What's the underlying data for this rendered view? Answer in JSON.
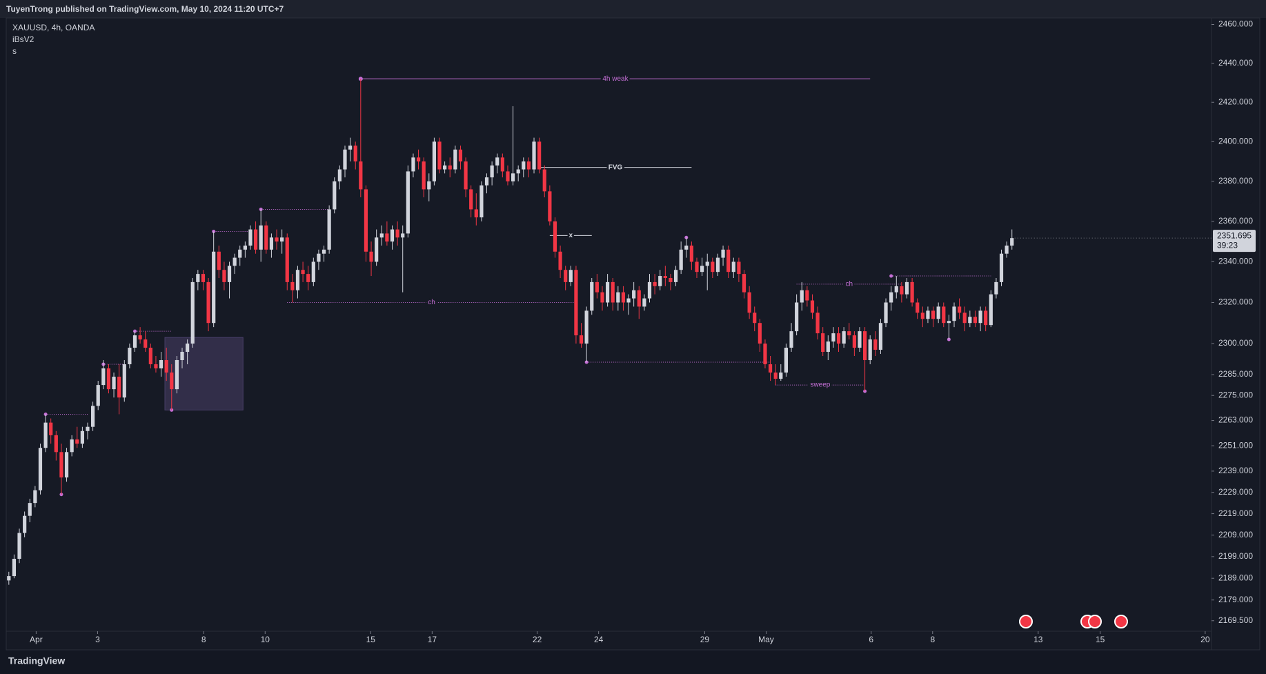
{
  "header": {
    "publisher": "TuyenTrong published on TradingView.com, May 10, 2024 11:20 UTC+7",
    "brand": "TradingView"
  },
  "chart_data": {
    "type": "candlestick",
    "symbol": "XAUUSD, 4h, OANDA",
    "indicators": [
      "iBsV2",
      "s"
    ],
    "log_scale": true,
    "up_color": "#d1d4dc",
    "down_color": "#f23645",
    "annotation_color": "#c56fd6",
    "ylim": [
      2164.7,
      2463.4
    ],
    "yticks": [
      {
        "value": 2460,
        "label": "2460.000"
      },
      {
        "value": 2440,
        "label": "2440.000"
      },
      {
        "value": 2420,
        "label": "2420.000"
      },
      {
        "value": 2400,
        "label": "2400.000"
      },
      {
        "value": 2380,
        "label": "2380.000"
      },
      {
        "value": 2360,
        "label": "2360.000"
      },
      {
        "value": 2340,
        "label": "2340.000"
      },
      {
        "value": 2320,
        "label": "2320.000"
      },
      {
        "value": 2300,
        "label": "2300.000"
      },
      {
        "value": 2285,
        "label": "2285.000"
      },
      {
        "value": 2275,
        "label": "2275.000"
      },
      {
        "value": 2263,
        "label": "2263.000"
      },
      {
        "value": 2251,
        "label": "2251.000"
      },
      {
        "value": 2239,
        "label": "2239.000"
      },
      {
        "value": 2229,
        "label": "2229.000"
      },
      {
        "value": 2219,
        "label": "2219.000"
      },
      {
        "value": 2209,
        "label": "2209.000"
      },
      {
        "value": 2199,
        "label": "2199.000"
      },
      {
        "value": 2189,
        "label": "2189.000"
      },
      {
        "value": 2179,
        "label": "2179.000"
      },
      {
        "value": 2169.5,
        "label": "2169.500"
      }
    ],
    "xlim": [
      -0.5,
      229
    ],
    "xticks": [
      {
        "value": 5.2,
        "label": "Apr"
      },
      {
        "value": 16.9,
        "label": "3"
      },
      {
        "value": 37.1,
        "label": "8"
      },
      {
        "value": 48.8,
        "label": "10"
      },
      {
        "value": 68.9,
        "label": "15"
      },
      {
        "value": 80.6,
        "label": "17"
      },
      {
        "value": 100.6,
        "label": "22"
      },
      {
        "value": 112.3,
        "label": "24"
      },
      {
        "value": 132.5,
        "label": "29"
      },
      {
        "value": 144.2,
        "label": "May"
      },
      {
        "value": 164.2,
        "label": "6"
      },
      {
        "value": 175.9,
        "label": "8"
      },
      {
        "value": 196,
        "label": "13"
      },
      {
        "value": 207.8,
        "label": "15"
      },
      {
        "value": 227.8,
        "label": "20"
      }
    ],
    "countdown": "39:23",
    "ohlc": [
      [
        2188,
        2192,
        2186,
        2190
      ],
      [
        2190,
        2200,
        2189,
        2198
      ],
      [
        2198,
        2212,
        2196,
        2210
      ],
      [
        2210,
        2220,
        2208,
        2218
      ],
      [
        2218,
        2226,
        2215,
        2224
      ],
      [
        2224,
        2232,
        2222,
        2230
      ],
      [
        2230,
        2252,
        2228,
        2250
      ],
      [
        2250,
        2266,
        2248,
        2262
      ],
      [
        2262,
        2264,
        2252,
        2256
      ],
      [
        2256,
        2258,
        2244,
        2248
      ],
      [
        2248,
        2252,
        2228,
        2236
      ],
      [
        2236,
        2250,
        2234,
        2248
      ],
      [
        2248,
        2256,
        2246,
        2254
      ],
      [
        2254,
        2260,
        2250,
        2252
      ],
      [
        2252,
        2260,
        2250,
        2258
      ],
      [
        2258,
        2262,
        2254,
        2260
      ],
      [
        2260,
        2272,
        2258,
        2270
      ],
      [
        2270,
        2282,
        2268,
        2280
      ],
      [
        2280,
        2292,
        2278,
        2288
      ],
      [
        2288,
        2290,
        2276,
        2278
      ],
      [
        2278,
        2286,
        2274,
        2284
      ],
      [
        2284,
        2290,
        2266,
        2274
      ],
      [
        2274,
        2292,
        2272,
        2290
      ],
      [
        2290,
        2300,
        2288,
        2298
      ],
      [
        2298,
        2306,
        2296,
        2304
      ],
      [
        2304,
        2308,
        2300,
        2302
      ],
      [
        2302,
        2306,
        2296,
        2298
      ],
      [
        2298,
        2300,
        2288,
        2290
      ],
      [
        2290,
        2294,
        2286,
        2288
      ],
      [
        2288,
        2296,
        2284,
        2292
      ],
      [
        2292,
        2298,
        2282,
        2286
      ],
      [
        2286,
        2290,
        2268,
        2278
      ],
      [
        2278,
        2294,
        2276,
        2292
      ],
      [
        2292,
        2298,
        2288,
        2296
      ],
      [
        2296,
        2302,
        2290,
        2300
      ],
      [
        2300,
        2332,
        2298,
        2330
      ],
      [
        2330,
        2336,
        2326,
        2334
      ],
      [
        2334,
        2336,
        2326,
        2330
      ],
      [
        2330,
        2332,
        2306,
        2310
      ],
      [
        2310,
        2355,
        2308,
        2345
      ],
      [
        2345,
        2348,
        2332,
        2336
      ],
      [
        2336,
        2340,
        2326,
        2330
      ],
      [
        2330,
        2340,
        2322,
        2338
      ],
      [
        2338,
        2344,
        2334,
        2342
      ],
      [
        2342,
        2348,
        2338,
        2346
      ],
      [
        2346,
        2350,
        2342,
        2348
      ],
      [
        2348,
        2358,
        2346,
        2356
      ],
      [
        2356,
        2360,
        2344,
        2346
      ],
      [
        2346,
        2366,
        2340,
        2358
      ],
      [
        2358,
        2360,
        2344,
        2346
      ],
      [
        2346,
        2354,
        2342,
        2352
      ],
      [
        2352,
        2356,
        2346,
        2350
      ],
      [
        2350,
        2356,
        2344,
        2352
      ],
      [
        2352,
        2354,
        2326,
        2330
      ],
      [
        2330,
        2334,
        2320,
        2326
      ],
      [
        2326,
        2338,
        2322,
        2336
      ],
      [
        2336,
        2340,
        2330,
        2334
      ],
      [
        2334,
        2338,
        2326,
        2330
      ],
      [
        2330,
        2342,
        2328,
        2340
      ],
      [
        2340,
        2346,
        2336,
        2344
      ],
      [
        2344,
        2348,
        2340,
        2346
      ],
      [
        2346,
        2368,
        2344,
        2366
      ],
      [
        2366,
        2382,
        2364,
        2380
      ],
      [
        2380,
        2388,
        2376,
        2386
      ],
      [
        2386,
        2398,
        2382,
        2396
      ],
      [
        2396,
        2402,
        2390,
        2398
      ],
      [
        2398,
        2400,
        2386,
        2390
      ],
      [
        2390,
        2432,
        2372,
        2376
      ],
      [
        2376,
        2378,
        2340,
        2345
      ],
      [
        2345,
        2350,
        2333,
        2340
      ],
      [
        2340,
        2356,
        2338,
        2352
      ],
      [
        2352,
        2358,
        2348,
        2354
      ],
      [
        2354,
        2360,
        2348,
        2350
      ],
      [
        2350,
        2358,
        2346,
        2356
      ],
      [
        2356,
        2360,
        2348,
        2352
      ],
      [
        2352,
        2358,
        2325,
        2354
      ],
      [
        2354,
        2388,
        2352,
        2385
      ],
      [
        2385,
        2394,
        2382,
        2392
      ],
      [
        2392,
        2396,
        2386,
        2390
      ],
      [
        2390,
        2392,
        2372,
        2376
      ],
      [
        2376,
        2384,
        2370,
        2380
      ],
      [
        2380,
        2402,
        2378,
        2400
      ],
      [
        2400,
        2402,
        2384,
        2386
      ],
      [
        2386,
        2390,
        2384,
        2388
      ],
      [
        2388,
        2392,
        2382,
        2386
      ],
      [
        2386,
        2398,
        2384,
        2396
      ],
      [
        2396,
        2398,
        2386,
        2390
      ],
      [
        2390,
        2392,
        2372,
        2376
      ],
      [
        2376,
        2378,
        2362,
        2366
      ],
      [
        2366,
        2374,
        2358,
        2362
      ],
      [
        2362,
        2380,
        2360,
        2378
      ],
      [
        2378,
        2384,
        2374,
        2382
      ],
      [
        2382,
        2390,
        2378,
        2388
      ],
      [
        2388,
        2394,
        2384,
        2392
      ],
      [
        2392,
        2394,
        2382,
        2385
      ],
      [
        2385,
        2388,
        2378,
        2380
      ],
      [
        2380,
        2418,
        2378,
        2384
      ],
      [
        2384,
        2388,
        2380,
        2386
      ],
      [
        2386,
        2392,
        2382,
        2390
      ],
      [
        2390,
        2392,
        2382,
        2386
      ],
      [
        2386,
        2402,
        2384,
        2400
      ],
      [
        2400,
        2402,
        2384,
        2386
      ],
      [
        2386,
        2388,
        2372,
        2375
      ],
      [
        2375,
        2378,
        2358,
        2360
      ],
      [
        2360,
        2362,
        2342,
        2345
      ],
      [
        2345,
        2348,
        2332,
        2336
      ],
      [
        2336,
        2338,
        2326,
        2330
      ],
      [
        2330,
        2338,
        2328,
        2336
      ],
      [
        2336,
        2338,
        2300,
        2304
      ],
      [
        2304,
        2310,
        2298,
        2300
      ],
      [
        2300,
        2318,
        2291,
        2316
      ],
      [
        2316,
        2332,
        2314,
        2330
      ],
      [
        2330,
        2334,
        2322,
        2325
      ],
      [
        2325,
        2328,
        2316,
        2320
      ],
      [
        2320,
        2334,
        2318,
        2330
      ],
      [
        2330,
        2332,
        2316,
        2320
      ],
      [
        2320,
        2328,
        2316,
        2325
      ],
      [
        2325,
        2328,
        2316,
        2320
      ],
      [
        2320,
        2324,
        2314,
        2322
      ],
      [
        2322,
        2330,
        2318,
        2326
      ],
      [
        2326,
        2328,
        2312,
        2318
      ],
      [
        2318,
        2324,
        2316,
        2322
      ],
      [
        2322,
        2334,
        2320,
        2330
      ],
      [
        2330,
        2334,
        2324,
        2328
      ],
      [
        2328,
        2336,
        2326,
        2333
      ],
      [
        2333,
        2338,
        2328,
        2332
      ],
      [
        2332,
        2334,
        2326,
        2330
      ],
      [
        2330,
        2338,
        2328,
        2336
      ],
      [
        2336,
        2350,
        2334,
        2346
      ],
      [
        2346,
        2352,
        2342,
        2348
      ],
      [
        2348,
        2350,
        2336,
        2340
      ],
      [
        2340,
        2342,
        2332,
        2335
      ],
      [
        2335,
        2342,
        2333,
        2338
      ],
      [
        2338,
        2344,
        2326,
        2340
      ],
      [
        2340,
        2342,
        2332,
        2335
      ],
      [
        2335,
        2344,
        2333,
        2342
      ],
      [
        2342,
        2348,
        2338,
        2346
      ],
      [
        2346,
        2348,
        2332,
        2335
      ],
      [
        2335,
        2342,
        2332,
        2340
      ],
      [
        2340,
        2342,
        2330,
        2334
      ],
      [
        2334,
        2336,
        2322,
        2325
      ],
      [
        2325,
        2328,
        2312,
        2315
      ],
      [
        2315,
        2318,
        2306,
        2310
      ],
      [
        2310,
        2312,
        2296,
        2300
      ],
      [
        2300,
        2302,
        2288,
        2290
      ],
      [
        2290,
        2294,
        2282,
        2286
      ],
      [
        2286,
        2290,
        2280,
        2283
      ],
      [
        2283,
        2290,
        2282,
        2286
      ],
      [
        2286,
        2300,
        2284,
        2298
      ],
      [
        2298,
        2310,
        2296,
        2306
      ],
      [
        2306,
        2324,
        2304,
        2320
      ],
      [
        2320,
        2330,
        2316,
        2326
      ],
      [
        2326,
        2328,
        2318,
        2321
      ],
      [
        2321,
        2324,
        2312,
        2315
      ],
      [
        2315,
        2318,
        2302,
        2305
      ],
      [
        2305,
        2308,
        2294,
        2296
      ],
      [
        2296,
        2304,
        2292,
        2301
      ],
      [
        2301,
        2308,
        2298,
        2305
      ],
      [
        2305,
        2308,
        2296,
        2300
      ],
      [
        2300,
        2308,
        2298,
        2306
      ],
      [
        2306,
        2310,
        2302,
        2304
      ],
      [
        2304,
        2306,
        2294,
        2298
      ],
      [
        2298,
        2308,
        2296,
        2306
      ],
      [
        2306,
        2308,
        2277,
        2292
      ],
      [
        2292,
        2304,
        2290,
        2302
      ],
      [
        2302,
        2306,
        2294,
        2297
      ],
      [
        2297,
        2312,
        2295,
        2310
      ],
      [
        2310,
        2322,
        2308,
        2320
      ],
      [
        2320,
        2328,
        2316,
        2325
      ],
      [
        2325,
        2333,
        2322,
        2328
      ],
      [
        2328,
        2330,
        2320,
        2324
      ],
      [
        2324,
        2332,
        2322,
        2330
      ],
      [
        2330,
        2332,
        2318,
        2320
      ],
      [
        2320,
        2322,
        2312,
        2315
      ],
      [
        2315,
        2318,
        2308,
        2312
      ],
      [
        2312,
        2318,
        2310,
        2316
      ],
      [
        2316,
        2318,
        2308,
        2312
      ],
      [
        2312,
        2320,
        2310,
        2318
      ],
      [
        2318,
        2320,
        2308,
        2310
      ],
      [
        2310,
        2314,
        2302,
        2311
      ],
      [
        2311,
        2320,
        2308,
        2318
      ],
      [
        2318,
        2322,
        2312,
        2315
      ],
      [
        2315,
        2318,
        2306,
        2310
      ],
      [
        2310,
        2316,
        2308,
        2313
      ],
      [
        2313,
        2316,
        2308,
        2310
      ],
      [
        2310,
        2318,
        2306,
        2316
      ],
      [
        2316,
        2318,
        2306,
        2309
      ],
      [
        2309,
        2326,
        2308,
        2324
      ],
      [
        2324,
        2332,
        2322,
        2330
      ],
      [
        2330,
        2346,
        2328,
        2344
      ],
      [
        2344,
        2350,
        2342,
        2348
      ],
      [
        2348,
        2356,
        2346,
        2351.695
      ]
    ],
    "levels": [
      {
        "label": "4h weak",
        "price": 2432,
        "from": 67,
        "to": 164,
        "style": "solid"
      },
      {
        "label": "FVG",
        "price": 2387,
        "from": 101,
        "to": 130,
        "style": "solid",
        "color": "#d1d4dc"
      },
      {
        "label": "x",
        "price": 2353,
        "from": 103,
        "to": 111,
        "style": "solid",
        "color": "#d1d4dc"
      },
      {
        "label": "ch",
        "price": 2320,
        "from": 53,
        "to": 108,
        "style": "dotted"
      },
      {
        "label": "ch",
        "price": 2329,
        "from": 150,
        "to": 170,
        "style": "dotted"
      },
      {
        "label": "sweep",
        "price": 2280,
        "from": 146,
        "to": 163,
        "style": "dotted"
      }
    ],
    "swings": [
      {
        "price": 2266,
        "from": 7,
        "to": 15
      },
      {
        "price": 2290,
        "from": 18,
        "to": 22
      },
      {
        "price": 2306,
        "from": 24,
        "to": 31
      },
      {
        "price": 2355,
        "from": 39,
        "to": 46
      },
      {
        "price": 2366,
        "from": 48,
        "to": 61
      },
      {
        "price": 2291,
        "from": 110,
        "to": 145
      },
      {
        "price": 2333,
        "from": 168,
        "to": 187
      },
      {
        "price": 2228,
        "from": 10,
        "to": 10
      },
      {
        "price": 2268,
        "from": 31,
        "to": 31
      },
      {
        "price": 2352,
        "from": 129,
        "to": 129
      },
      {
        "price": 2277,
        "from": 163,
        "to": 163
      },
      {
        "price": 2302,
        "from": 179,
        "to": 179
      }
    ],
    "zones": [
      {
        "from": 29.7,
        "to": 44.6,
        "top": 2303,
        "bottom": 2268
      }
    ]
  }
}
